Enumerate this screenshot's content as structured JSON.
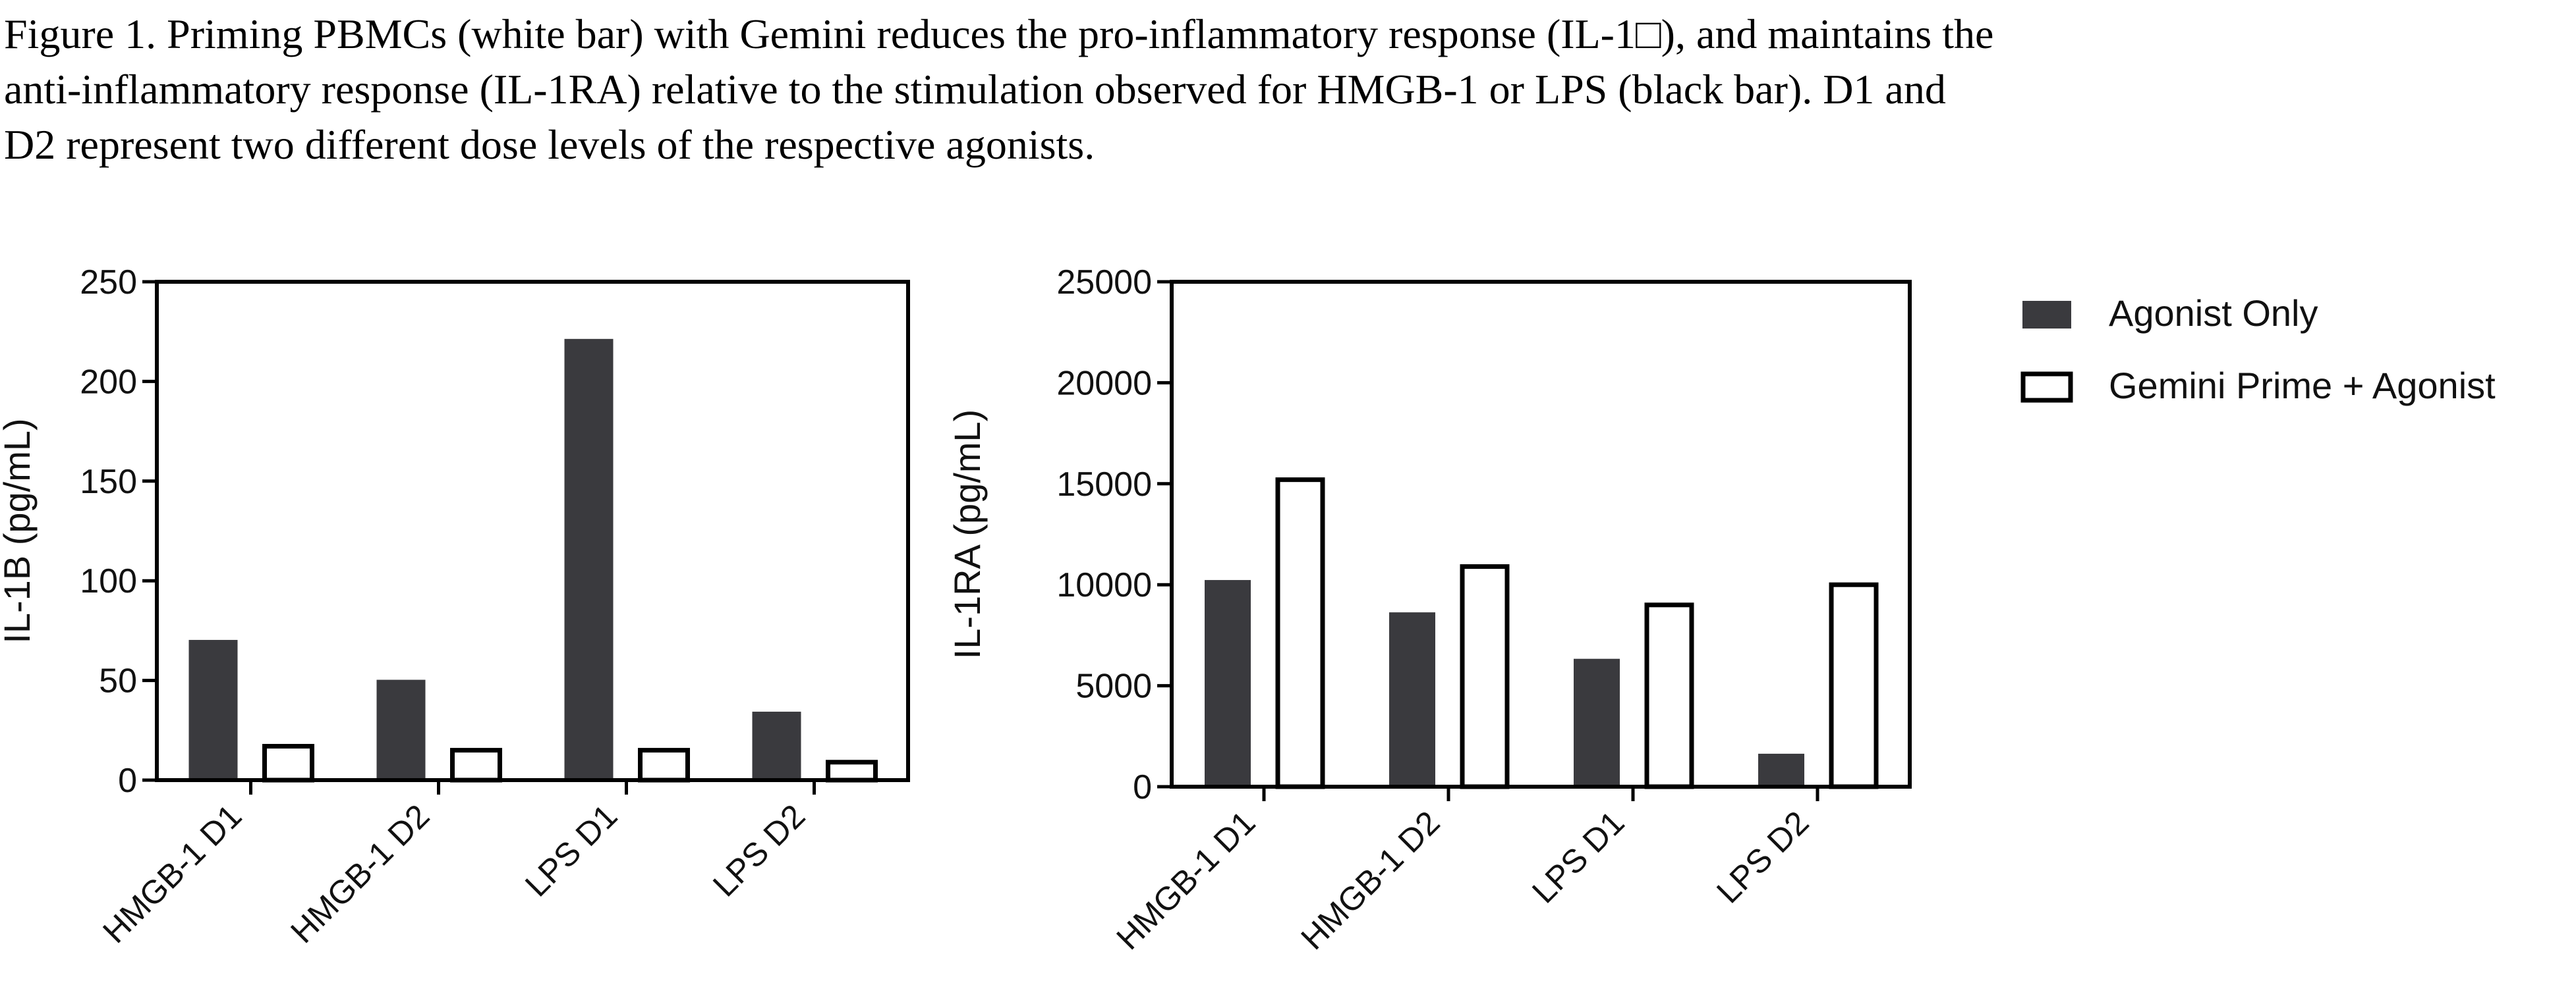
{
  "caption": {
    "line1": "Figure 1. Priming PBMCs (white bar) with Gemini reduces the pro-inflammatory response (IL-1□), and maintains the",
    "line2": "anti-inflammatory response (IL-1RA) relative to the stimulation observed for HMGB-1 or LPS (black bar).  D1 and",
    "line3": "D2 represent two different dose levels of the respective agonists."
  },
  "colors": {
    "agonist_fill": "#3a3a3e",
    "prime_fill": "#ffffff",
    "bar_stroke": "#000000",
    "axis": "#000000"
  },
  "legend": [
    {
      "label": "Agonist Only",
      "style": "filled"
    },
    {
      "label": "Gemini Prime + Agonist",
      "style": "open"
    }
  ],
  "chart_data": [
    {
      "type": "bar",
      "categories": [
        "HMGB-1 D1",
        "HMGB-1 D2",
        "LPS D1",
        "LPS D2"
      ],
      "series": [
        {
          "name": "Agonist Only",
          "values": [
            70,
            50,
            221,
            34
          ]
        },
        {
          "name": "Gemini Prime + Agonist",
          "values": [
            17,
            15,
            15,
            9
          ]
        }
      ],
      "ylabel": "IL-1B (pg/mL)",
      "xlabel": "",
      "ylim": [
        0,
        250
      ],
      "yticks": [
        0,
        50,
        100,
        150,
        200,
        250
      ],
      "grid": false
    },
    {
      "type": "bar",
      "categories": [
        "HMGB-1 D1",
        "HMGB-1 D2",
        "LPS D1",
        "LPS D2"
      ],
      "series": [
        {
          "name": "Agonist Only",
          "values": [
            10200,
            8600,
            6300,
            1600
          ]
        },
        {
          "name": "Gemini Prime + Agonist",
          "values": [
            15200,
            10900,
            9000,
            10000
          ]
        }
      ],
      "ylabel": "IL-1RA (pg/mL)",
      "xlabel": "",
      "ylim": [
        0,
        25000
      ],
      "yticks": [
        0,
        5000,
        10000,
        15000,
        20000,
        25000
      ],
      "grid": false,
      "legend_position": "right"
    }
  ]
}
